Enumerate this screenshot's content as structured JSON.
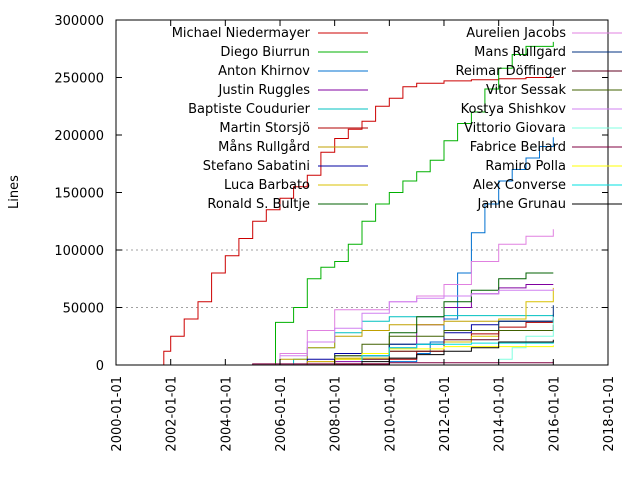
{
  "chart_data": {
    "type": "line",
    "title": "",
    "xlabel": "",
    "ylabel": "Lines",
    "xlim": [
      "2000-01-01",
      "2018-01-01"
    ],
    "ylim": [
      0,
      300000
    ],
    "grid": "horizontal dotted at 50000 and 100000",
    "legend_position": "top (two columns)",
    "x_ticks": [
      "2000-01-01",
      "2002-01-01",
      "2004-01-01",
      "2006-01-01",
      "2008-01-01",
      "2010-01-01",
      "2012-01-01",
      "2014-01-01",
      "2016-01-01",
      "2018-01-01"
    ],
    "y_ticks": [
      "0",
      "50000",
      "100000",
      "150000",
      "200000",
      "250000",
      "300000"
    ],
    "series": [
      {
        "name": "Michael Niedermayer",
        "color": "#cc0000",
        "points": [
          [
            "2001-07-15",
            0
          ],
          [
            "2001-10-01",
            12000
          ],
          [
            "2002-01-01",
            25000
          ],
          [
            "2002-07-01",
            40000
          ],
          [
            "2003-01-01",
            55000
          ],
          [
            "2003-07-01",
            80000
          ],
          [
            "2004-01-01",
            95000
          ],
          [
            "2004-07-01",
            110000
          ],
          [
            "2005-01-01",
            125000
          ],
          [
            "2005-07-01",
            135000
          ],
          [
            "2006-01-01",
            145000
          ],
          [
            "2006-07-01",
            155000
          ],
          [
            "2007-01-01",
            165000
          ],
          [
            "2007-07-01",
            185000
          ],
          [
            "2008-01-01",
            197000
          ],
          [
            "2008-07-01",
            205000
          ],
          [
            "2009-01-01",
            212000
          ],
          [
            "2009-07-01",
            225000
          ],
          [
            "2010-01-01",
            232000
          ],
          [
            "2010-07-01",
            242000
          ],
          [
            "2011-01-01",
            245000
          ],
          [
            "2012-01-01",
            247000
          ],
          [
            "2013-01-01",
            248000
          ],
          [
            "2014-01-01",
            249000
          ],
          [
            "2015-01-01",
            250000
          ],
          [
            "2016-01-01",
            251000
          ]
        ]
      },
      {
        "name": "Diego Biurrun",
        "color": "#00b000",
        "points": [
          [
            "2005-10-01",
            0
          ],
          [
            "2005-11-01",
            37000
          ],
          [
            "2006-07-01",
            50000
          ],
          [
            "2007-01-01",
            75000
          ],
          [
            "2007-07-01",
            85000
          ],
          [
            "2008-01-01",
            90000
          ],
          [
            "2008-07-01",
            105000
          ],
          [
            "2009-01-01",
            125000
          ],
          [
            "2009-07-01",
            140000
          ],
          [
            "2010-01-01",
            150000
          ],
          [
            "2010-07-01",
            160000
          ],
          [
            "2011-01-01",
            168000
          ],
          [
            "2011-07-01",
            178000
          ],
          [
            "2012-01-01",
            195000
          ],
          [
            "2012-07-01",
            210000
          ],
          [
            "2013-01-01",
            220000
          ],
          [
            "2013-07-01",
            240000
          ],
          [
            "2014-01-01",
            258000
          ],
          [
            "2014-07-01",
            270000
          ],
          [
            "2015-01-01",
            277000
          ],
          [
            "2016-01-01",
            281000
          ]
        ]
      },
      {
        "name": "Anton Khirnov",
        "color": "#0070d0",
        "points": [
          [
            "2009-01-01",
            0
          ],
          [
            "2010-01-01",
            3000
          ],
          [
            "2011-01-01",
            10000
          ],
          [
            "2011-07-01",
            20000
          ],
          [
            "2012-01-01",
            40000
          ],
          [
            "2012-07-01",
            80000
          ],
          [
            "2013-01-01",
            115000
          ],
          [
            "2013-07-01",
            140000
          ],
          [
            "2014-01-01",
            160000
          ],
          [
            "2014-07-01",
            170000
          ],
          [
            "2015-01-01",
            180000
          ],
          [
            "2015-07-01",
            190000
          ],
          [
            "2016-01-01",
            198000
          ]
        ]
      },
      {
        "name": "Justin Ruggles",
        "color": "#8000a0",
        "points": [
          [
            "2006-01-01",
            0
          ],
          [
            "2007-01-01",
            3000
          ],
          [
            "2009-01-01",
            8000
          ],
          [
            "2010-01-01",
            15000
          ],
          [
            "2011-01-01",
            35000
          ],
          [
            "2012-01-01",
            50000
          ],
          [
            "2013-01-01",
            62000
          ],
          [
            "2014-01-01",
            67000
          ],
          [
            "2015-01-01",
            70000
          ],
          [
            "2016-01-01",
            70000
          ]
        ]
      },
      {
        "name": "Baptiste Coudurier",
        "color": "#00c0c0",
        "points": [
          [
            "2006-01-01",
            0
          ],
          [
            "2006-07-01",
            5000
          ],
          [
            "2007-01-01",
            15000
          ],
          [
            "2008-01-01",
            28000
          ],
          [
            "2009-01-01",
            38000
          ],
          [
            "2010-01-01",
            42000
          ],
          [
            "2012-01-01",
            43000
          ],
          [
            "2016-01-01",
            44000
          ]
        ]
      },
      {
        "name": "Martin Storsjö",
        "color": "#b00000",
        "points": [
          [
            "2005-01-01",
            0
          ],
          [
            "2008-01-01",
            1000
          ],
          [
            "2010-01-01",
            5000
          ],
          [
            "2011-01-01",
            12000
          ],
          [
            "2012-01-01",
            20000
          ],
          [
            "2013-01-01",
            27000
          ],
          [
            "2014-01-01",
            33000
          ],
          [
            "2015-01-01",
            37000
          ],
          [
            "2016-01-01",
            40000
          ]
        ]
      },
      {
        "name": "Måns Rullgård",
        "color": "#c0a000",
        "points": [
          [
            "2005-01-01",
            0
          ],
          [
            "2006-01-01",
            5000
          ],
          [
            "2007-01-01",
            15000
          ],
          [
            "2008-01-01",
            25000
          ],
          [
            "2009-01-01",
            30000
          ],
          [
            "2010-01-01",
            35000
          ],
          [
            "2012-01-01",
            38000
          ],
          [
            "2016-01-01",
            39000
          ]
        ]
      },
      {
        "name": "Stefano Sabatini",
        "color": "#0000a0",
        "points": [
          [
            "2006-01-01",
            0
          ],
          [
            "2007-01-01",
            5000
          ],
          [
            "2008-01-01",
            10000
          ],
          [
            "2010-01-01",
            18000
          ],
          [
            "2012-01-01",
            28000
          ],
          [
            "2013-01-01",
            35000
          ],
          [
            "2014-01-01",
            38000
          ],
          [
            "2016-01-01",
            40000
          ]
        ]
      },
      {
        "name": "Luca Barbato",
        "color": "#d8c000",
        "points": [
          [
            "2006-01-01",
            0
          ],
          [
            "2007-01-01",
            3000
          ],
          [
            "2008-01-01",
            6000
          ],
          [
            "2010-01-01",
            12000
          ],
          [
            "2012-01-01",
            20000
          ],
          [
            "2013-01-01",
            25000
          ],
          [
            "2014-01-01",
            40000
          ],
          [
            "2015-01-01",
            55000
          ],
          [
            "2016-01-01",
            67000
          ]
        ]
      },
      {
        "name": "Ronald S. Bultje",
        "color": "#006000",
        "points": [
          [
            "2008-01-01",
            0
          ],
          [
            "2009-01-01",
            10000
          ],
          [
            "2010-01-01",
            28000
          ],
          [
            "2011-01-01",
            42000
          ],
          [
            "2012-01-01",
            55000
          ],
          [
            "2013-01-01",
            65000
          ],
          [
            "2014-01-01",
            75000
          ],
          [
            "2015-01-01",
            80000
          ],
          [
            "2016-01-01",
            80000
          ]
        ]
      },
      {
        "name": "Aurelien Jacobs",
        "color": "#e080e0",
        "points": [
          [
            "2005-01-01",
            0
          ],
          [
            "2006-01-01",
            10000
          ],
          [
            "2007-01-01",
            30000
          ],
          [
            "2008-01-01",
            48000
          ],
          [
            "2010-01-01",
            55000
          ],
          [
            "2011-01-01",
            60000
          ],
          [
            "2012-01-01",
            70000
          ],
          [
            "2013-01-01",
            90000
          ],
          [
            "2014-01-01",
            105000
          ],
          [
            "2015-01-01",
            112000
          ],
          [
            "2016-01-01",
            118000
          ]
        ]
      },
      {
        "name": "Mans Rullgard",
        "color": "#003080",
        "points": [
          [
            "2006-01-01",
            0
          ],
          [
            "2008-01-01",
            8000
          ],
          [
            "2010-01-01",
            18000
          ],
          [
            "2012-01-01",
            30000
          ],
          [
            "2014-01-01",
            38000
          ],
          [
            "2016-01-01",
            52000
          ]
        ]
      },
      {
        "name": "Reimar Döffinger",
        "color": "#600020",
        "points": [
          [
            "2006-01-01",
            0
          ],
          [
            "2008-01-01",
            5000
          ],
          [
            "2010-01-01",
            12000
          ],
          [
            "2012-01-01",
            22000
          ],
          [
            "2014-01-01",
            30000
          ],
          [
            "2016-01-01",
            35000
          ]
        ]
      },
      {
        "name": "Vitor Sessak",
        "color": "#406000",
        "points": [
          [
            "2007-01-01",
            0
          ],
          [
            "2008-01-01",
            8000
          ],
          [
            "2009-01-01",
            18000
          ],
          [
            "2010-01-01",
            25000
          ],
          [
            "2012-01-01",
            30000
          ],
          [
            "2016-01-01",
            31000
          ]
        ]
      },
      {
        "name": "Kostya Shishkov",
        "color": "#d080f0",
        "points": [
          [
            "2005-01-01",
            0
          ],
          [
            "2006-01-01",
            8000
          ],
          [
            "2007-01-01",
            20000
          ],
          [
            "2008-01-01",
            32000
          ],
          [
            "2009-01-01",
            45000
          ],
          [
            "2010-01-01",
            55000
          ],
          [
            "2011-01-01",
            58000
          ],
          [
            "2012-01-01",
            60000
          ],
          [
            "2013-01-01",
            62000
          ],
          [
            "2014-01-01",
            65000
          ],
          [
            "2016-01-01",
            66000
          ]
        ]
      },
      {
        "name": "Vittorio Giovara",
        "color": "#80ffe0",
        "points": [
          [
            "2013-01-01",
            0
          ],
          [
            "2014-01-01",
            5000
          ],
          [
            "2014-07-01",
            15000
          ],
          [
            "2015-01-01",
            25000
          ],
          [
            "2016-01-01",
            42000
          ]
        ]
      },
      {
        "name": "Fabrice Bellard",
        "color": "#800040",
        "points": [
          [
            "2000-01-01",
            0
          ],
          [
            "2005-01-01",
            1000
          ],
          [
            "2010-01-01",
            2000
          ],
          [
            "2016-01-01",
            3000
          ]
        ]
      },
      {
        "name": "Ramiro Polla",
        "color": "#ffff00",
        "points": [
          [
            "2007-01-01",
            0
          ],
          [
            "2008-01-01",
            5000
          ],
          [
            "2009-01-01",
            10000
          ],
          [
            "2010-01-01",
            14000
          ],
          [
            "2012-01-01",
            16000
          ],
          [
            "2016-01-01",
            17000
          ]
        ]
      },
      {
        "name": "Alex Converse",
        "color": "#00e0e0",
        "points": [
          [
            "2008-01-01",
            0
          ],
          [
            "2009-01-01",
            8000
          ],
          [
            "2010-01-01",
            15000
          ],
          [
            "2011-01-01",
            18000
          ],
          [
            "2013-01-01",
            19000
          ],
          [
            "2016-01-01",
            20000
          ]
        ]
      },
      {
        "name": "Janne Grunau",
        "color": "#000000",
        "points": [
          [
            "2008-01-01",
            0
          ],
          [
            "2009-01-01",
            3000
          ],
          [
            "2010-01-01",
            6000
          ],
          [
            "2011-01-01",
            9000
          ],
          [
            "2012-01-01",
            12000
          ],
          [
            "2013-01-01",
            15000
          ],
          [
            "2014-01-01",
            20000
          ],
          [
            "2016-01-01",
            22000
          ]
        ]
      }
    ]
  }
}
